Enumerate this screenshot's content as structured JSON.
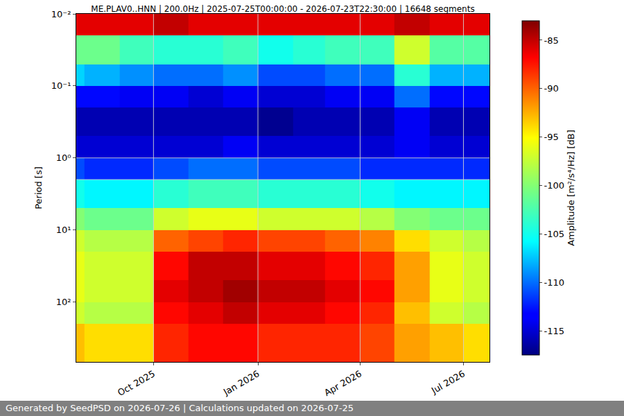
{
  "chart_data": {
    "type": "heatmap",
    "title": "ME.PLAV0..HNN | 200.0Hz | 2025-07-25T00:00:00 - 2026-07-23T22:30:00 | 16648 segments",
    "y_label": "Period [s]",
    "colorbar_label": "Amplitude [m²/s⁴/Hz] [dB]",
    "footer": "Generated by SeedPSD on 2026-07-26 | Calculations updated on 2026-07-25",
    "log": "y",
    "grid": true,
    "x_bins": [
      "2025-07",
      "2025-08",
      "2025-09",
      "2025-10",
      "2025-11",
      "2025-12",
      "2026-01",
      "2026-02",
      "2026-03",
      "2026-04",
      "2026-05",
      "2026-06",
      "2026-07",
      "2026-08"
    ],
    "y_bins": [
      0.01,
      0.02,
      0.05,
      0.1,
      0.2,
      0.5,
      1,
      2,
      5,
      10,
      20,
      50,
      100,
      200,
      680
    ],
    "z": [
      [
        -86,
        -86,
        -86,
        -85,
        -86,
        -86,
        -86,
        -86,
        -86,
        -86,
        -85,
        -86,
        -86
      ],
      [
        -101,
        -101,
        -103,
        -104,
        -104,
        -103,
        -105,
        -104,
        -103,
        -103,
        -97,
        -102,
        -102
      ],
      [
        -107,
        -108,
        -109,
        -110,
        -110,
        -109,
        -111,
        -111,
        -110,
        -110,
        -104,
        -108,
        -108
      ],
      [
        -113,
        -113,
        -114,
        -114,
        -115,
        -114,
        -115,
        -115,
        -114,
        -114,
        -110,
        -113,
        -113
      ],
      [
        -116,
        -116,
        -116,
        -116,
        -116,
        -116,
        -117,
        -116,
        -116,
        -116,
        -114,
        -116,
        -116
      ],
      [
        -115,
        -115,
        -115,
        -115,
        -115,
        -114,
        -115,
        -115,
        -115,
        -115,
        -114,
        -115,
        -115
      ],
      [
        -111,
        -112,
        -112,
        -111,
        -110,
        -110,
        -111,
        -111,
        -111,
        -112,
        -112,
        -112,
        -112
      ],
      [
        -105,
        -106,
        -106,
        -104,
        -103,
        -103,
        -104,
        -104,
        -104,
        -105,
        -106,
        -106,
        -106
      ],
      [
        -100,
        -101,
        -101,
        -97,
        -96,
        -96,
        -97,
        -97,
        -97,
        -98,
        -100,
        -101,
        -101
      ],
      [
        -97,
        -98,
        -98,
        -90,
        -89,
        -88,
        -89,
        -89,
        -90,
        -91,
        -94,
        -97,
        -98
      ],
      [
        -96,
        -97,
        -97,
        -87,
        -85,
        -85,
        -86,
        -86,
        -87,
        -88,
        -92,
        -96,
        -97
      ],
      [
        -96,
        -97,
        -97,
        -86,
        -85,
        -84,
        -85,
        -85,
        -86,
        -87,
        -92,
        -96,
        -97
      ],
      [
        -97,
        -98,
        -98,
        -87,
        -86,
        -85,
        -86,
        -86,
        -87,
        -88,
        -93,
        -97,
        -98
      ],
      [
        -93,
        -94,
        -94,
        -88,
        -87,
        -87,
        -88,
        -88,
        -88,
        -89,
        -92,
        -93,
        -94
      ]
    ],
    "xlim": [
      "2025-07-25T00:00:00",
      "2026-07-23T22:30:00"
    ],
    "xticks": [
      {
        "value": "2025-10-01",
        "label": "Oct 2025"
      },
      {
        "value": "2026-01-01",
        "label": "Jan 2026"
      },
      {
        "value": "2026-04-01",
        "label": "Apr 2026"
      },
      {
        "value": "2026-07-01",
        "label": "Jul 2026"
      }
    ],
    "ylim": [
      0.01,
      680
    ],
    "yticks": [
      {
        "value": 0.01,
        "label": "10⁻²"
      },
      {
        "value": 0.1,
        "label": "10⁻¹"
      },
      {
        "value": 1,
        "label": "10⁰"
      },
      {
        "value": 10,
        "label": "10¹"
      },
      {
        "value": 100,
        "label": "10²"
      }
    ],
    "zlim": [
      -117.5,
      -83
    ],
    "zticks": [
      -115,
      -110,
      -105,
      -100,
      -95,
      -90,
      -85
    ]
  }
}
